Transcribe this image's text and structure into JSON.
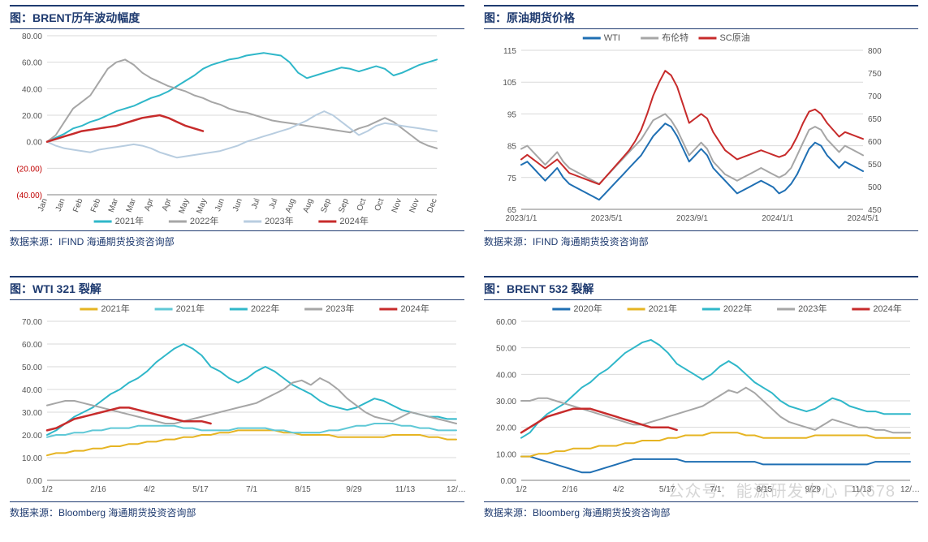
{
  "watermark": "公众号：能源研发中心  FX678",
  "panels": {
    "tl": {
      "title_prefix": "图：",
      "title": "BRENT历年波动幅度",
      "source_label": "数据来源：",
      "source": "IFIND  海通期货投资咨询部",
      "type": "line",
      "title_fontsize": 14,
      "source_fontsize": 12,
      "axis_fontsize": 10,
      "legend_fontsize": 11,
      "background_color": "#ffffff",
      "grid_color": "#d9d9d9",
      "axis_color": "#7f7f7f",
      "negative_label_color": "#c00000",
      "y": {
        "min": -40,
        "max": 80,
        "step": 20,
        "labels": [
          "(40.00)",
          "(20.00)",
          "0.00",
          "20.00",
          "40.00",
          "60.00",
          "80.00"
        ]
      },
      "x_labels": [
        "Jan",
        "Jan",
        "Feb",
        "Feb",
        "Mar",
        "Mar",
        "Apr",
        "Apr",
        "May",
        "May",
        "Jun",
        "Jun",
        "Jul",
        "Jul",
        "Aug",
        "Aug",
        "Sep",
        "Sep",
        "Oct",
        "Oct",
        "Nov",
        "Nov",
        "Dec"
      ],
      "legend_position": "bottom",
      "series": [
        {
          "name": "2021年",
          "color": "#2fb7c9",
          "width": 2,
          "data": [
            0,
            3,
            6,
            10,
            12,
            15,
            17,
            20,
            23,
            25,
            27,
            30,
            33,
            35,
            38,
            42,
            46,
            50,
            55,
            58,
            60,
            62,
            63,
            65,
            66,
            67,
            66,
            65,
            60,
            52,
            48,
            50,
            52,
            54,
            56,
            55,
            53,
            55,
            57,
            55,
            50,
            52,
            55,
            58,
            60,
            62
          ]
        },
        {
          "name": "2022年",
          "color": "#a6a6a6",
          "width": 2,
          "data": [
            0,
            5,
            15,
            25,
            30,
            35,
            45,
            55,
            60,
            62,
            58,
            52,
            48,
            45,
            42,
            40,
            38,
            35,
            33,
            30,
            28,
            25,
            23,
            22,
            20,
            18,
            16,
            15,
            14,
            13,
            12,
            11,
            10,
            9,
            8,
            7,
            10,
            12,
            15,
            18,
            15,
            10,
            5,
            0,
            -3,
            -5
          ]
        },
        {
          "name": "2023年",
          "color": "#b8cde0",
          "width": 2,
          "data": [
            0,
            -3,
            -5,
            -6,
            -7,
            -8,
            -6,
            -5,
            -4,
            -3,
            -2,
            -3,
            -5,
            -8,
            -10,
            -12,
            -11,
            -10,
            -9,
            -8,
            -7,
            -5,
            -3,
            0,
            2,
            4,
            6,
            8,
            10,
            13,
            16,
            20,
            23,
            20,
            15,
            10,
            5,
            8,
            12,
            14,
            13,
            12,
            11,
            10,
            9,
            8
          ]
        },
        {
          "name": "2024年",
          "color": "#c72b2b",
          "width": 2.5,
          "data": [
            0,
            2,
            4,
            6,
            8,
            9,
            10,
            11,
            12,
            14,
            16,
            18,
            19,
            20,
            18,
            15,
            12,
            10,
            8
          ]
        }
      ]
    },
    "tr": {
      "title_prefix": "图：",
      "title": "原油期货价格",
      "source_label": "数据来源：",
      "source": "IFIND  海通期货投资咨询部",
      "type": "line-dual-axis",
      "title_fontsize": 14,
      "source_fontsize": 12,
      "axis_fontsize": 10,
      "legend_fontsize": 11,
      "background_color": "#ffffff",
      "grid_color": "#d9d9d9",
      "axis_color": "#7f7f7f",
      "y_left": {
        "min": 65,
        "max": 115,
        "step": 10,
        "labels": [
          "65",
          "75",
          "85",
          "95",
          "105",
          "115"
        ]
      },
      "y_right": {
        "min": 450,
        "max": 800,
        "step": 50,
        "labels": [
          "450",
          "500",
          "550",
          "600",
          "650",
          "700",
          "750",
          "800"
        ]
      },
      "x_labels": [
        "2023/1/1",
        "2023/5/1",
        "2023/9/1",
        "2024/1/1",
        "2024/5/1"
      ],
      "legend_position": "top",
      "series": [
        {
          "name": "WTI",
          "color": "#1f6fb3",
          "width": 2,
          "axis": "left",
          "data": [
            79,
            80,
            78,
            76,
            74,
            76,
            78,
            75,
            73,
            72,
            71,
            70,
            69,
            68,
            70,
            72,
            74,
            76,
            78,
            80,
            82,
            85,
            88,
            90,
            92,
            91,
            88,
            84,
            80,
            82,
            84,
            82,
            78,
            76,
            74,
            72,
            70,
            71,
            72,
            73,
            74,
            73,
            72,
            70,
            71,
            73,
            76,
            80,
            84,
            86,
            85,
            82,
            80,
            78,
            80,
            79,
            78,
            77
          ]
        },
        {
          "name": "布伦特",
          "color": "#a6a6a6",
          "width": 2,
          "axis": "left",
          "data": [
            84,
            85,
            83,
            81,
            79,
            81,
            83,
            80,
            78,
            77,
            76,
            75,
            74,
            73,
            75,
            77,
            79,
            81,
            83,
            85,
            87,
            90,
            93,
            94,
            95,
            93,
            90,
            86,
            82,
            84,
            86,
            84,
            80,
            78,
            76,
            75,
            74,
            75,
            76,
            77,
            78,
            77,
            76,
            75,
            76,
            78,
            82,
            86,
            90,
            91,
            90,
            87,
            85,
            83,
            85,
            84,
            83,
            82
          ]
        },
        {
          "name": "SC原油",
          "color": "#c72b2b",
          "width": 2,
          "axis": "right",
          "data": [
            560,
            570,
            560,
            550,
            540,
            550,
            560,
            545,
            530,
            525,
            520,
            515,
            510,
            505,
            520,
            535,
            550,
            565,
            580,
            600,
            625,
            660,
            700,
            730,
            755,
            745,
            720,
            680,
            640,
            650,
            660,
            650,
            620,
            600,
            580,
            570,
            560,
            565,
            570,
            575,
            580,
            575,
            570,
            565,
            570,
            585,
            610,
            640,
            665,
            670,
            660,
            640,
            625,
            610,
            620,
            615,
            610,
            605
          ]
        }
      ]
    },
    "bl": {
      "title_prefix": "图：",
      "title": "WTI 321 裂解",
      "source_label": "数据来源：",
      "source": "Bloomberg  海通期货投资咨询部",
      "type": "line",
      "title_fontsize": 14,
      "source_fontsize": 12,
      "axis_fontsize": 10,
      "legend_fontsize": 11,
      "background_color": "#ffffff",
      "grid_color": "#d9d9d9",
      "axis_color": "#7f7f7f",
      "y": {
        "min": 0,
        "max": 70,
        "step": 10,
        "labels": [
          "0.00",
          "10.00",
          "20.00",
          "30.00",
          "40.00",
          "50.00",
          "60.00",
          "70.00"
        ]
      },
      "x_labels": [
        "1/2",
        "2/16",
        "4/2",
        "5/17",
        "7/1",
        "8/15",
        "9/29",
        "11/13",
        "12/…"
      ],
      "legend_position": "top",
      "series": [
        {
          "name": "2021年",
          "color": "#e6b422",
          "width": 2,
          "data": [
            11,
            12,
            12,
            13,
            13,
            14,
            14,
            15,
            15,
            16,
            16,
            17,
            17,
            18,
            18,
            19,
            19,
            20,
            20,
            21,
            21,
            22,
            22,
            22,
            22,
            22,
            21,
            21,
            20,
            20,
            20,
            20,
            19,
            19,
            19,
            19,
            19,
            19,
            20,
            20,
            20,
            20,
            19,
            19,
            18,
            18
          ]
        },
        {
          "name": "2021年",
          "color": "#5fc8d6",
          "width": 2,
          "data": [
            19,
            20,
            20,
            21,
            21,
            22,
            22,
            23,
            23,
            23,
            24,
            24,
            24,
            24,
            24,
            23,
            23,
            22,
            22,
            22,
            22,
            23,
            23,
            23,
            23,
            22,
            22,
            21,
            21,
            21,
            21,
            22,
            22,
            23,
            24,
            24,
            25,
            25,
            25,
            24,
            24,
            23,
            23,
            22,
            22,
            22
          ]
        },
        {
          "name": "2022年",
          "color": "#2fb7c9",
          "width": 2,
          "data": [
            20,
            22,
            25,
            28,
            30,
            32,
            35,
            38,
            40,
            43,
            45,
            48,
            52,
            55,
            58,
            60,
            58,
            55,
            50,
            48,
            45,
            43,
            45,
            48,
            50,
            48,
            45,
            42,
            40,
            38,
            35,
            33,
            32,
            31,
            32,
            34,
            36,
            35,
            33,
            31,
            30,
            29,
            28,
            28,
            27,
            27
          ]
        },
        {
          "name": "2023年",
          "color": "#a6a6a6",
          "width": 2,
          "data": [
            33,
            34,
            35,
            35,
            34,
            33,
            32,
            31,
            30,
            29,
            28,
            27,
            26,
            25,
            25,
            26,
            27,
            28,
            29,
            30,
            31,
            32,
            33,
            34,
            36,
            38,
            40,
            43,
            44,
            42,
            45,
            43,
            40,
            36,
            33,
            30,
            28,
            27,
            26,
            28,
            30,
            29,
            28,
            27,
            26,
            25
          ]
        },
        {
          "name": "2024年",
          "color": "#c72b2b",
          "width": 2.5,
          "data": [
            22,
            23,
            25,
            27,
            28,
            29,
            30,
            31,
            32,
            32,
            31,
            30,
            29,
            28,
            27,
            26,
            26,
            26,
            25
          ]
        }
      ]
    },
    "br": {
      "title_prefix": "图：",
      "title": "BRENT 532 裂解",
      "source_label": "数据来源：",
      "source": "Bloomberg  海通期货投资咨询部",
      "type": "line",
      "title_fontsize": 14,
      "source_fontsize": 12,
      "axis_fontsize": 10,
      "legend_fontsize": 11,
      "background_color": "#ffffff",
      "grid_color": "#d9d9d9",
      "axis_color": "#7f7f7f",
      "y": {
        "min": 0,
        "max": 60,
        "step": 10,
        "labels": [
          "0.00",
          "10.00",
          "20.00",
          "30.00",
          "40.00",
          "50.00",
          "60.00"
        ]
      },
      "x_labels": [
        "1/2",
        "2/16",
        "4/2",
        "5/17",
        "7/1",
        "8/15",
        "9/29",
        "11/13",
        "12/…"
      ],
      "legend_position": "top",
      "series": [
        {
          "name": "2020年",
          "color": "#1f6fb3",
          "width": 2,
          "data": [
            9,
            9,
            8,
            7,
            6,
            5,
            4,
            3,
            3,
            4,
            5,
            6,
            7,
            8,
            8,
            8,
            8,
            8,
            8,
            7,
            7,
            7,
            7,
            7,
            7,
            7,
            7,
            7,
            6,
            6,
            6,
            6,
            6,
            6,
            6,
            6,
            6,
            6,
            6,
            6,
            6,
            7,
            7,
            7,
            7,
            7
          ]
        },
        {
          "name": "2021年",
          "color": "#e6b422",
          "width": 2,
          "data": [
            9,
            9,
            10,
            10,
            11,
            11,
            12,
            12,
            12,
            13,
            13,
            13,
            14,
            14,
            15,
            15,
            15,
            16,
            16,
            17,
            17,
            17,
            18,
            18,
            18,
            18,
            17,
            17,
            16,
            16,
            16,
            16,
            16,
            16,
            17,
            17,
            17,
            17,
            17,
            17,
            17,
            16,
            16,
            16,
            16,
            16
          ]
        },
        {
          "name": "2022年",
          "color": "#2fb7c9",
          "width": 2,
          "data": [
            16,
            18,
            22,
            25,
            27,
            29,
            32,
            35,
            37,
            40,
            42,
            45,
            48,
            50,
            52,
            53,
            51,
            48,
            44,
            42,
            40,
            38,
            40,
            43,
            45,
            43,
            40,
            37,
            35,
            33,
            30,
            28,
            27,
            26,
            27,
            29,
            31,
            30,
            28,
            27,
            26,
            26,
            25,
            25,
            25,
            25
          ]
        },
        {
          "name": "2023年",
          "color": "#a6a6a6",
          "width": 2,
          "data": [
            30,
            30,
            31,
            31,
            30,
            29,
            28,
            27,
            26,
            25,
            24,
            23,
            22,
            21,
            21,
            22,
            23,
            24,
            25,
            26,
            27,
            28,
            30,
            32,
            34,
            33,
            35,
            33,
            30,
            27,
            24,
            22,
            21,
            20,
            19,
            21,
            23,
            22,
            21,
            20,
            20,
            19,
            19,
            18,
            18,
            18
          ]
        },
        {
          "name": "2024年",
          "color": "#c72b2b",
          "width": 2.5,
          "data": [
            18,
            20,
            22,
            24,
            25,
            26,
            27,
            27,
            27,
            26,
            25,
            24,
            23,
            22,
            21,
            20,
            20,
            20,
            19
          ]
        }
      ]
    }
  }
}
